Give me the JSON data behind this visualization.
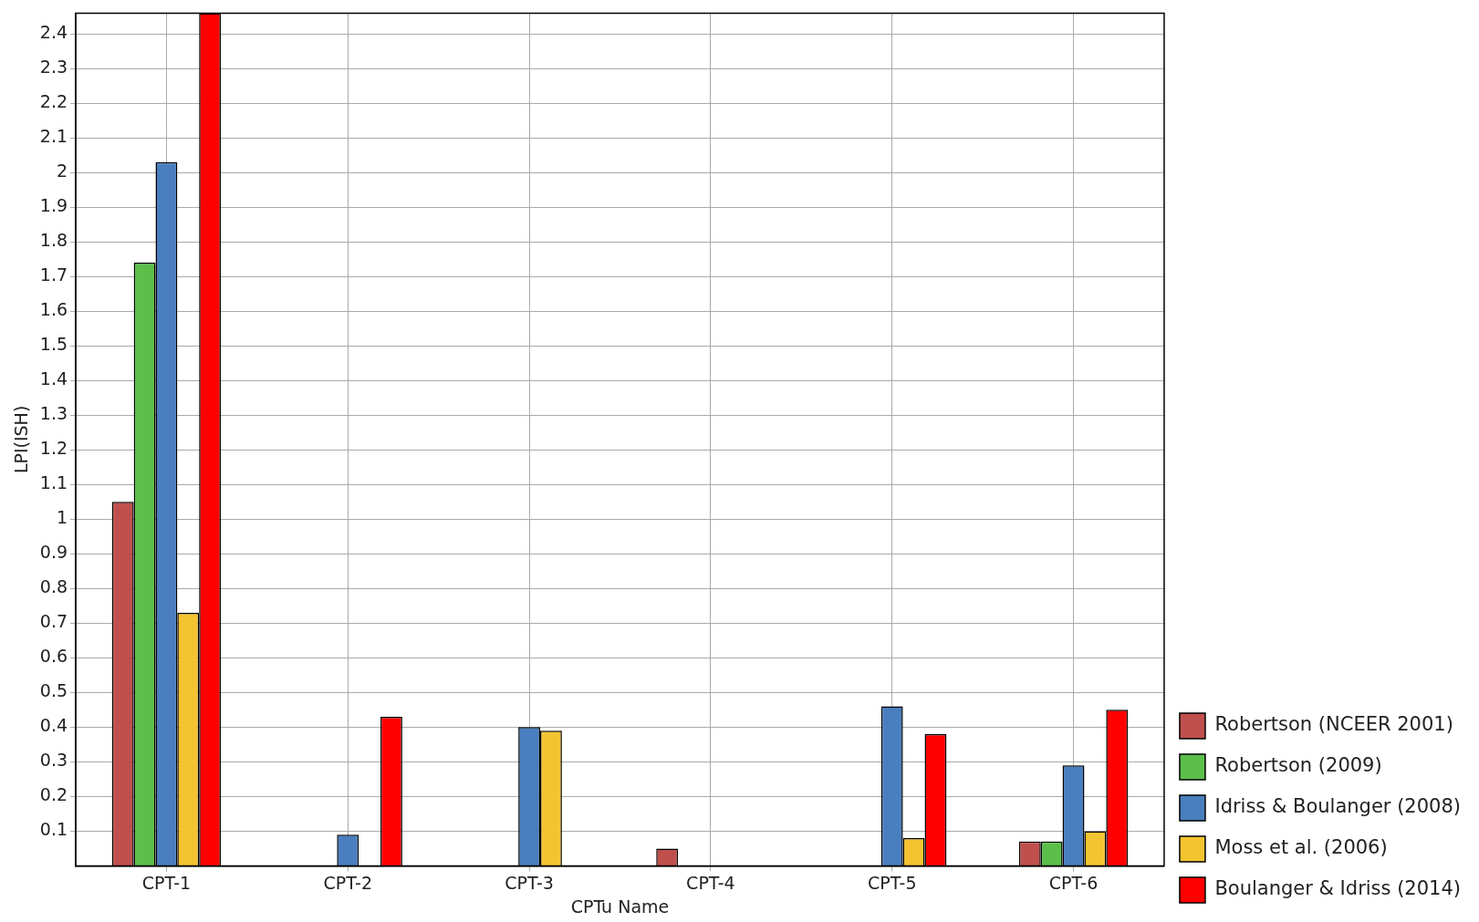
{
  "chart_data": {
    "type": "bar",
    "xlabel": "CPTu Name",
    "ylabel": "LPI(ISH)",
    "categories": [
      "CPT-1",
      "CPT-2",
      "CPT-3",
      "CPT-4",
      "CPT-5",
      "CPT-6"
    ],
    "series": [
      {
        "name": "Robertson (NCEER 2001)",
        "color": "#c0504d",
        "values": [
          1.05,
          null,
          null,
          0.05,
          null,
          0.07
        ]
      },
      {
        "name": "Robertson (2009)",
        "color": "#5cbf4a",
        "values": [
          1.74,
          null,
          null,
          null,
          null,
          0.07
        ]
      },
      {
        "name": "Idriss & Boulanger (2008)",
        "color": "#4a7ebf",
        "values": [
          2.03,
          0.09,
          0.4,
          null,
          0.46,
          0.29
        ]
      },
      {
        "name": "Moss et al. (2006)",
        "color": "#f4c430",
        "values": [
          0.73,
          null,
          0.39,
          null,
          0.08,
          0.1
        ]
      },
      {
        "name": "Boulanger & Idriss (2014)",
        "color": "#ff0000",
        "values": [
          2.46,
          0.43,
          null,
          null,
          0.38,
          0.45
        ]
      }
    ],
    "ylim": [
      0,
      2.46
    ],
    "yticks": [
      0.1,
      0.2,
      0.3,
      0.4,
      0.5,
      0.6,
      0.7,
      0.8,
      0.9,
      1,
      1.1,
      1.2,
      1.3,
      1.4,
      1.5,
      1.6,
      1.7,
      1.8,
      1.9,
      2,
      2.1,
      2.2,
      2.3,
      2.4
    ],
    "grid": true,
    "legend": "bottom right"
  }
}
